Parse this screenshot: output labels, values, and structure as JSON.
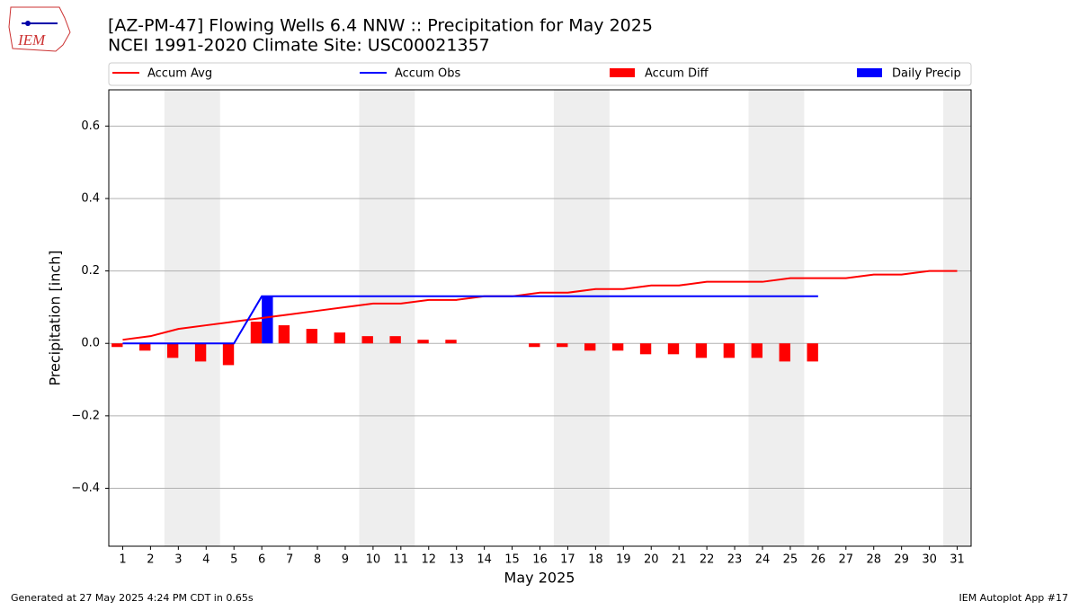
{
  "logo_text": "IEM",
  "footer_left": "Generated at 27 May 2025 4:24 PM CDT in 0.65s",
  "footer_right": "IEM Autoplot App #17",
  "chart_data": {
    "type": "combo",
    "title": "[AZ-PM-47] Flowing Wells 6.4 NNW :: Precipitation for May 2025",
    "subtitle": "NCEI 1991-2020 Climate Site: USC00021357",
    "x_label": "May 2025",
    "y_label": "Precipitation [inch]",
    "x": [
      1,
      2,
      3,
      4,
      5,
      6,
      7,
      8,
      9,
      10,
      11,
      12,
      13,
      14,
      15,
      16,
      17,
      18,
      19,
      20,
      21,
      22,
      23,
      24,
      25,
      26,
      27,
      28,
      29,
      30,
      31
    ],
    "xlim": [
      0.5,
      31.5
    ],
    "xticks": [
      1,
      2,
      3,
      4,
      5,
      6,
      7,
      8,
      9,
      10,
      11,
      12,
      13,
      14,
      15,
      16,
      17,
      18,
      19,
      20,
      21,
      22,
      23,
      24,
      25,
      26,
      27,
      28,
      29,
      30,
      31
    ],
    "ylim": [
      -0.56,
      0.7
    ],
    "yticks": [
      {
        "value": -0.4,
        "label": "−0.4"
      },
      {
        "value": -0.2,
        "label": "−0.2"
      },
      {
        "value": 0,
        "label": "0.0"
      },
      0.2,
      0.4,
      0.6
    ],
    "grid": true,
    "shaded": [
      [
        2.5,
        4.5
      ],
      [
        9.5,
        11.5
      ],
      [
        16.5,
        18.5
      ],
      [
        23.5,
        25.5
      ],
      [
        30.5,
        31.5
      ]
    ],
    "shade_color": "#eeeeee",
    "series": [
      {
        "name": "Accum Avg",
        "type": "line",
        "color": "#ff0000",
        "values": [
          0.01,
          0.02,
          0.04,
          0.05,
          0.06,
          0.07,
          0.08,
          0.09,
          0.1,
          0.11,
          0.11,
          0.12,
          0.12,
          0.13,
          0.13,
          0.14,
          0.14,
          0.15,
          0.15,
          0.16,
          0.16,
          0.17,
          0.17,
          0.17,
          0.18,
          0.18,
          0.18,
          0.19,
          0.19,
          0.2,
          0.2
        ]
      },
      {
        "name": "Accum Obs",
        "type": "line",
        "color": "#0000ff",
        "values": [
          0,
          0,
          0,
          0,
          0,
          0.13,
          0.13,
          0.13,
          0.13,
          0.13,
          0.13,
          0.13,
          0.13,
          0.13,
          0.13,
          0.13,
          0.13,
          0.13,
          0.13,
          0.13,
          0.13,
          0.13,
          0.13,
          0.13,
          0.13,
          0.13,
          null,
          null,
          null,
          null,
          null
        ]
      },
      {
        "name": "Accum Diff",
        "type": "bar",
        "color": "#ff0000",
        "values": [
          -0.01,
          -0.02,
          -0.04,
          -0.05,
          -0.06,
          0.06,
          0.05,
          0.04,
          0.03,
          0.02,
          0.02,
          0.01,
          0.01,
          0,
          0,
          -0.01,
          -0.01,
          -0.02,
          -0.02,
          -0.03,
          -0.03,
          -0.04,
          -0.04,
          -0.04,
          -0.05,
          -0.05,
          null,
          null,
          null,
          null,
          null
        ]
      },
      {
        "name": "Daily Precip",
        "type": "bar",
        "color": "#0000ff",
        "values": [
          0,
          0,
          0,
          0,
          0,
          0.13,
          0,
          0,
          0,
          0,
          0,
          0,
          0,
          0,
          0,
          0,
          0,
          0,
          0,
          0,
          0,
          0,
          0,
          0,
          0,
          0,
          null,
          null,
          null,
          null,
          null
        ]
      }
    ]
  }
}
